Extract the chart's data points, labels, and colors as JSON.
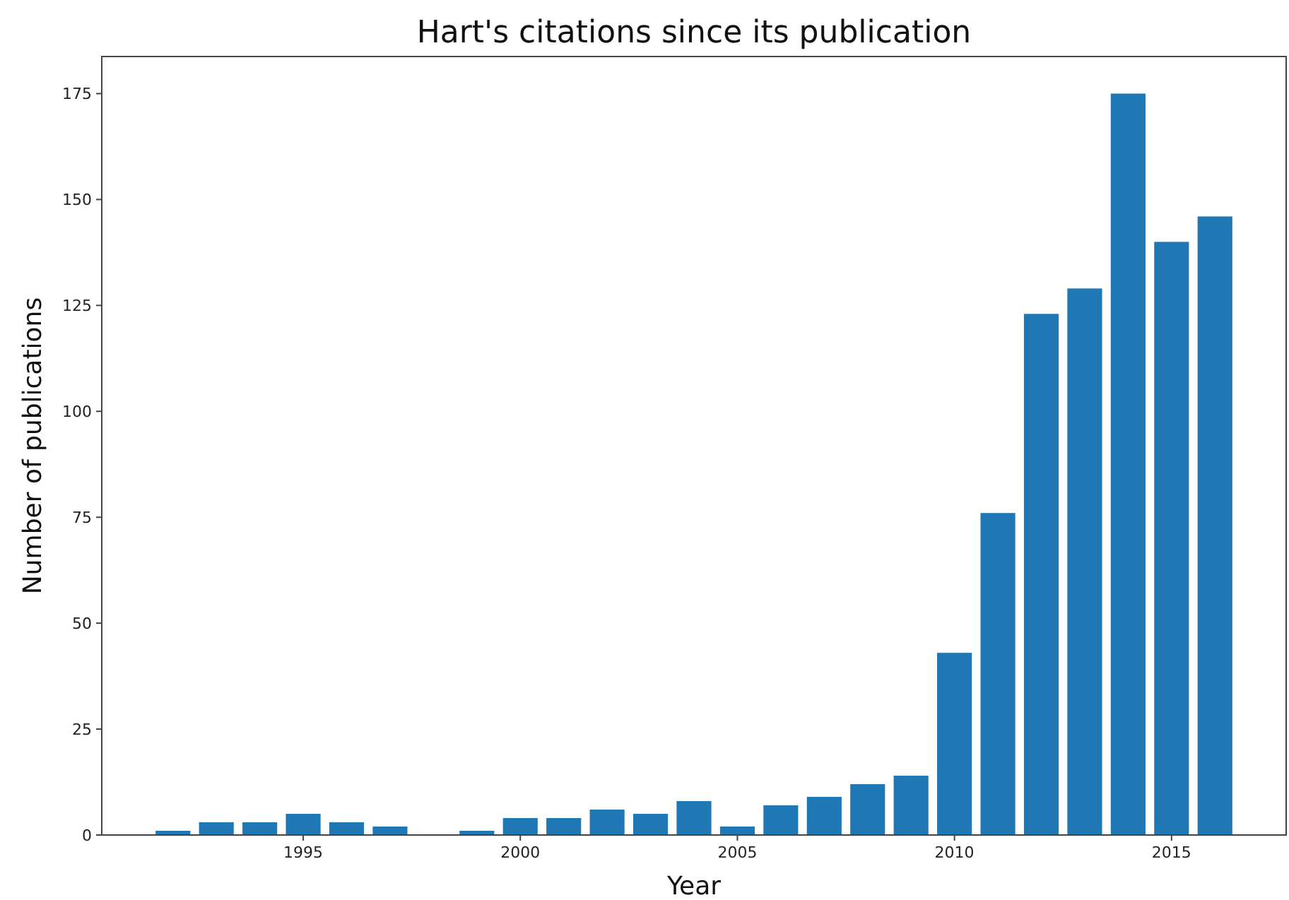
{
  "chart_data": {
    "type": "bar",
    "title": "Hart's citations since its publication",
    "xlabel": "Year",
    "ylabel": "Number of publications",
    "x": [
      1992,
      1993,
      1994,
      1995,
      1996,
      1997,
      1999,
      2000,
      2001,
      2002,
      2003,
      2004,
      2005,
      2006,
      2007,
      2008,
      2009,
      2010,
      2011,
      2012,
      2013,
      2014,
      2015,
      2016
    ],
    "values": [
      1,
      3,
      3,
      5,
      3,
      2,
      1,
      4,
      4,
      6,
      5,
      8,
      2,
      7,
      9,
      12,
      14,
      43,
      76,
      123,
      129,
      175,
      140,
      146
    ],
    "color": "#1f77b4",
    "xlim": [
      1990.36,
      2017.64
    ],
    "xticks": [
      1995,
      2000,
      2005,
      2010,
      2015
    ],
    "ylim": [
      0,
      183.75
    ],
    "yticks": [
      0,
      25,
      50,
      75,
      100,
      125,
      150,
      175
    ]
  }
}
